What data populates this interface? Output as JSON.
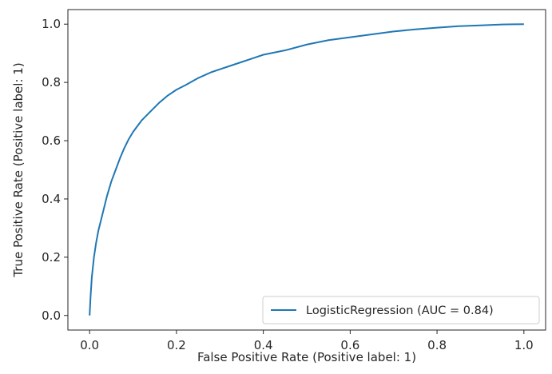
{
  "chart_data": {
    "type": "line",
    "title": "",
    "xlabel": "False Positive Rate (Positive label: 1)",
    "ylabel": "True Positive Rate (Positive label: 1)",
    "xlim": [
      -0.05,
      1.05
    ],
    "ylim": [
      -0.05,
      1.05
    ],
    "xticks": [
      0.0,
      0.2,
      0.4,
      0.6,
      0.8,
      1.0
    ],
    "yticks": [
      0.0,
      0.2,
      0.4,
      0.6,
      0.8,
      1.0
    ],
    "xtick_labels": [
      "0.0",
      "0.2",
      "0.4",
      "0.6",
      "0.8",
      "1.0"
    ],
    "ytick_labels": [
      "0.0",
      "0.2",
      "0.4",
      "0.6",
      "0.8",
      "1.0"
    ],
    "grid": false,
    "legend": {
      "position": "lower-right",
      "entries": [
        "LogisticRegression (AUC = 0.84)"
      ]
    },
    "series": [
      {
        "name": "LogisticRegression (AUC = 0.84)",
        "color": "#1f77b4",
        "x": [
          0.0,
          0.002,
          0.005,
          0.01,
          0.015,
          0.02,
          0.03,
          0.04,
          0.05,
          0.06,
          0.07,
          0.08,
          0.09,
          0.1,
          0.12,
          0.14,
          0.16,
          0.18,
          0.2,
          0.22,
          0.25,
          0.28,
          0.3,
          0.33,
          0.35,
          0.38,
          0.4,
          0.45,
          0.5,
          0.55,
          0.6,
          0.65,
          0.7,
          0.75,
          0.8,
          0.85,
          0.9,
          0.95,
          1.0
        ],
        "y": [
          0.0,
          0.06,
          0.13,
          0.2,
          0.25,
          0.29,
          0.35,
          0.41,
          0.46,
          0.5,
          0.54,
          0.575,
          0.605,
          0.63,
          0.67,
          0.7,
          0.73,
          0.755,
          0.775,
          0.79,
          0.815,
          0.835,
          0.845,
          0.86,
          0.87,
          0.885,
          0.895,
          0.91,
          0.93,
          0.945,
          0.955,
          0.965,
          0.975,
          0.982,
          0.988,
          0.993,
          0.996,
          0.999,
          1.0
        ]
      }
    ]
  }
}
